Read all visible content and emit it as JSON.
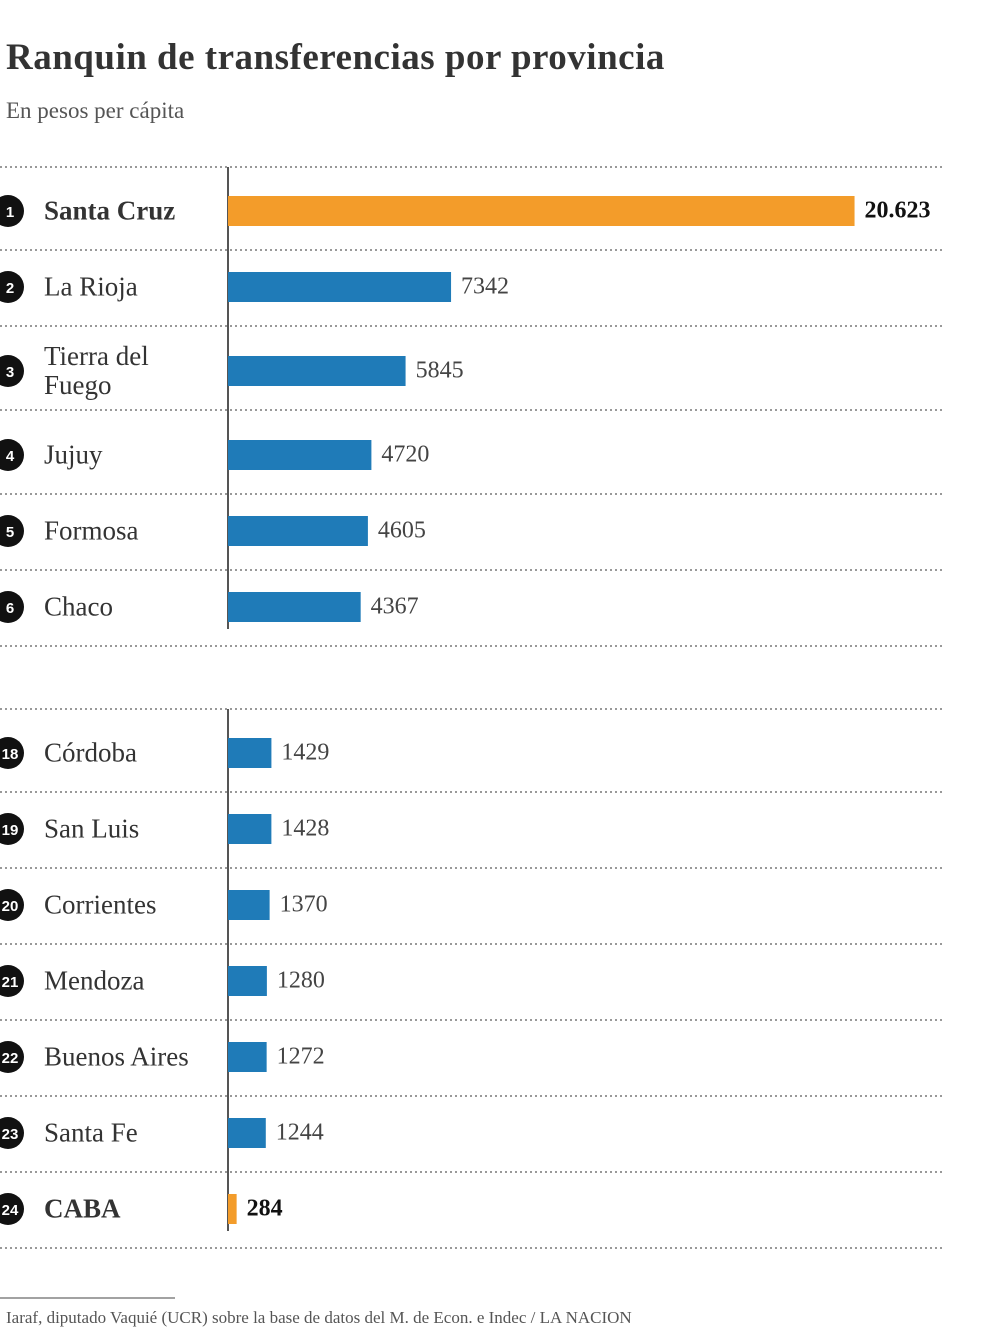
{
  "chart_data": {
    "type": "bar",
    "orientation": "horizontal",
    "title": "Ranquin de transferencias por provincia",
    "subtitle": "En pesos per cápita",
    "ranks": [
      "1",
      "2",
      "3",
      "4",
      "5",
      "6",
      "18",
      "19",
      "20",
      "21",
      "22",
      "23",
      "24"
    ],
    "categories": [
      "Santa Cruz",
      "La Rioja",
      "Tierra del Fuego",
      "Jujuy",
      "Formosa",
      "Chaco",
      "Córdoba",
      "San Luis",
      "Corrientes",
      "Mendoza",
      "Buenos Aires",
      "Santa Fe",
      "CABA"
    ],
    "values": [
      20623,
      7342,
      5845,
      4720,
      4605,
      4367,
      1429,
      1428,
      1370,
      1280,
      1272,
      1244,
      284
    ],
    "value_labels": [
      "20.623",
      "7342",
      "5845",
      "4720",
      "4605",
      "4367",
      "1429",
      "1428",
      "1370",
      "1280",
      "1272",
      "1244",
      "284"
    ],
    "colors": [
      "#f39c2a",
      "#1f7bb8",
      "#1f7bb8",
      "#1f7bb8",
      "#1f7bb8",
      "#1f7bb8",
      "#1f7bb8",
      "#1f7bb8",
      "#1f7bb8",
      "#1f7bb8",
      "#1f7bb8",
      "#1f7bb8",
      "#f39c2a"
    ],
    "xlim": [
      0,
      21000
    ],
    "source": "Iaraf, diputado Vaquié (UCR) sobre la base de datos del M. de Econ. e Indec / LA NACION"
  }
}
